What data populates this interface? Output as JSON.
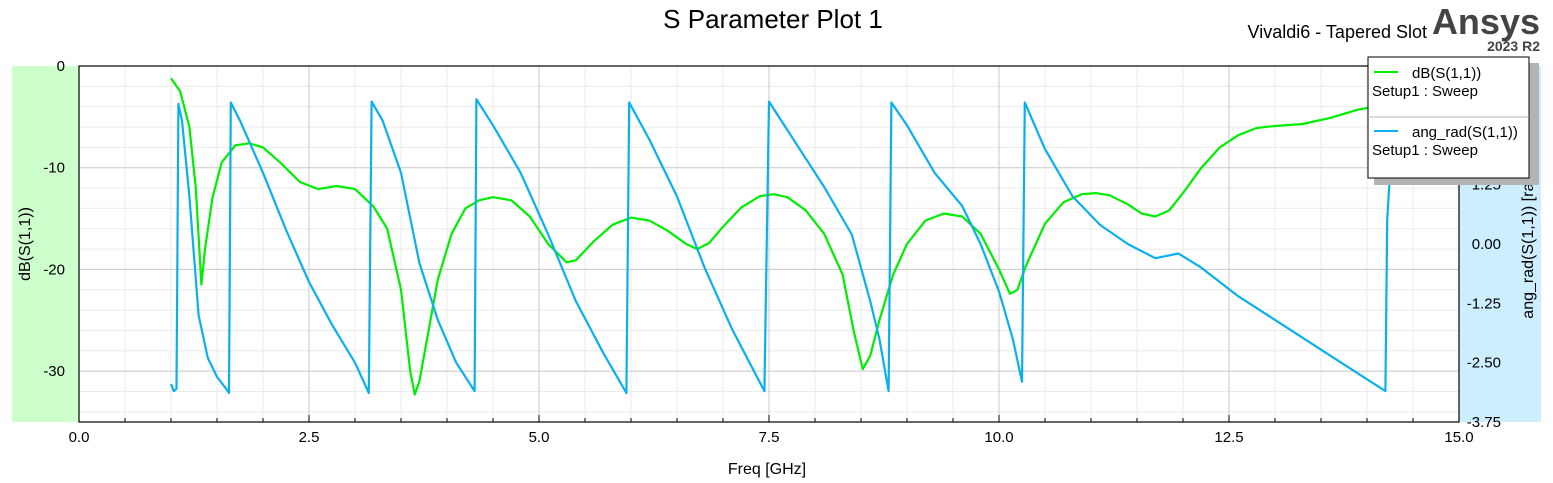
{
  "header": {
    "title": "S Parameter Plot 1",
    "design": "Vivaldi6 - Tapered Slot",
    "brand": "Ansys",
    "version": "2023 R2"
  },
  "colors": {
    "left_axis_band": "#ccffcc",
    "right_axis_band": "#cceeff",
    "series_db": "#00ee00",
    "series_ang": "#0ab0ee",
    "grid_major": "#c8c8c8",
    "grid_minor": "#ebebeb"
  },
  "chart_data": {
    "type": "line",
    "xlabel": "Freq [GHz]",
    "ylabel_left": "dB(S(1,1))",
    "ylabel_right": "ang_rad(S(1,1)) [rad]",
    "xlim": [
      0,
      15
    ],
    "ylim_left": [
      -35,
      0
    ],
    "ylim_right": [
      -3.75,
      3.75
    ],
    "x_ticks": [
      "0.0",
      "2.5",
      "5.0",
      "7.5",
      "10.0",
      "12.5",
      "15.0"
    ],
    "x_tick_values": [
      0,
      2.5,
      5,
      7.5,
      10,
      12.5,
      15
    ],
    "y_ticks_left": [
      "0",
      "-10",
      "-20",
      "-30"
    ],
    "y_tick_values_left": [
      0,
      -10,
      -20,
      -30
    ],
    "y_ticks_right": [
      "1.25",
      "0.00",
      "-1.25",
      "-2.50",
      "-3.75"
    ],
    "y_tick_values_right": [
      1.25,
      0,
      -1.25,
      -2.5,
      -3.75
    ],
    "grid": true,
    "legend_position": "top-right",
    "series": [
      {
        "name": "dB(S(1,1))",
        "setup": "Setup1 : Sweep",
        "axis": "left",
        "points": [
          [
            1.0,
            -1.2
          ],
          [
            1.1,
            -2.5
          ],
          [
            1.2,
            -6
          ],
          [
            1.27,
            -12
          ],
          [
            1.33,
            -21.5
          ],
          [
            1.37,
            -18
          ],
          [
            1.45,
            -13
          ],
          [
            1.55,
            -9.5
          ],
          [
            1.7,
            -7.8
          ],
          [
            1.85,
            -7.6
          ],
          [
            2.0,
            -8
          ],
          [
            2.2,
            -9.6
          ],
          [
            2.4,
            -11.4
          ],
          [
            2.6,
            -12.1
          ],
          [
            2.8,
            -11.8
          ],
          [
            3.0,
            -12.1
          ],
          [
            3.2,
            -13.8
          ],
          [
            3.35,
            -16
          ],
          [
            3.5,
            -22
          ],
          [
            3.6,
            -30
          ],
          [
            3.65,
            -32.3
          ],
          [
            3.7,
            -31
          ],
          [
            3.8,
            -26
          ],
          [
            3.9,
            -21
          ],
          [
            4.05,
            -16.5
          ],
          [
            4.2,
            -14
          ],
          [
            4.35,
            -13.2
          ],
          [
            4.5,
            -12.9
          ],
          [
            4.7,
            -13.2
          ],
          [
            4.9,
            -14.8
          ],
          [
            5.1,
            -17.5
          ],
          [
            5.3,
            -19.3
          ],
          [
            5.4,
            -19.1
          ],
          [
            5.6,
            -17.2
          ],
          [
            5.8,
            -15.6
          ],
          [
            6.0,
            -14.9
          ],
          [
            6.2,
            -15.2
          ],
          [
            6.4,
            -16.2
          ],
          [
            6.6,
            -17.5
          ],
          [
            6.72,
            -18
          ],
          [
            6.85,
            -17.4
          ],
          [
            7.0,
            -15.8
          ],
          [
            7.2,
            -13.9
          ],
          [
            7.4,
            -12.8
          ],
          [
            7.55,
            -12.6
          ],
          [
            7.7,
            -12.9
          ],
          [
            7.9,
            -14.2
          ],
          [
            8.1,
            -16.5
          ],
          [
            8.3,
            -20.5
          ],
          [
            8.42,
            -26
          ],
          [
            8.52,
            -29.8
          ],
          [
            8.6,
            -28.5
          ],
          [
            8.7,
            -25
          ],
          [
            8.85,
            -20.5
          ],
          [
            9.0,
            -17.5
          ],
          [
            9.2,
            -15.2
          ],
          [
            9.4,
            -14.5
          ],
          [
            9.6,
            -14.8
          ],
          [
            9.8,
            -16.5
          ],
          [
            10.0,
            -20
          ],
          [
            10.12,
            -22.4
          ],
          [
            10.2,
            -22
          ],
          [
            10.3,
            -19.5
          ],
          [
            10.5,
            -15.5
          ],
          [
            10.7,
            -13.4
          ],
          [
            10.9,
            -12.6
          ],
          [
            11.05,
            -12.5
          ],
          [
            11.2,
            -12.7
          ],
          [
            11.4,
            -13.6
          ],
          [
            11.55,
            -14.5
          ],
          [
            11.7,
            -14.8
          ],
          [
            11.85,
            -14.2
          ],
          [
            12.0,
            -12.5
          ],
          [
            12.2,
            -10
          ],
          [
            12.4,
            -8
          ],
          [
            12.6,
            -6.8
          ],
          [
            12.8,
            -6.1
          ],
          [
            13.0,
            -5.9
          ],
          [
            13.3,
            -5.7
          ],
          [
            13.6,
            -5.1
          ],
          [
            13.9,
            -4.3
          ],
          [
            14.2,
            -3.8
          ]
        ]
      },
      {
        "name": "ang_rad(S(1,1))",
        "setup": "Setup1 : Sweep",
        "axis": "right",
        "points": [
          [
            1.0,
            -2.95
          ],
          [
            1.03,
            -3.1
          ],
          [
            1.06,
            -3.05
          ],
          [
            1.08,
            2.95
          ],
          [
            1.12,
            2.6
          ],
          [
            1.2,
            1.0
          ],
          [
            1.3,
            -1.5
          ],
          [
            1.4,
            -2.4
          ],
          [
            1.5,
            -2.8
          ],
          [
            1.6,
            -3.05
          ],
          [
            1.63,
            -3.14
          ],
          [
            1.65,
            2.98
          ],
          [
            1.75,
            2.6
          ],
          [
            2.0,
            1.5
          ],
          [
            2.25,
            0.3
          ],
          [
            2.5,
            -0.8
          ],
          [
            2.75,
            -1.7
          ],
          [
            3.0,
            -2.5
          ],
          [
            3.15,
            -3.14
          ],
          [
            3.18,
            3.0
          ],
          [
            3.3,
            2.6
          ],
          [
            3.5,
            1.5
          ],
          [
            3.7,
            -0.4
          ],
          [
            3.9,
            -1.6
          ],
          [
            4.1,
            -2.5
          ],
          [
            4.3,
            -3.1
          ],
          [
            4.32,
            3.05
          ],
          [
            4.5,
            2.5
          ],
          [
            4.8,
            1.5
          ],
          [
            5.1,
            0.2
          ],
          [
            5.4,
            -1.2
          ],
          [
            5.7,
            -2.3
          ],
          [
            5.95,
            -3.14
          ],
          [
            5.98,
            2.98
          ],
          [
            6.2,
            2.2
          ],
          [
            6.5,
            1.0
          ],
          [
            6.8,
            -0.5
          ],
          [
            7.1,
            -1.8
          ],
          [
            7.45,
            -3.1
          ],
          [
            7.5,
            3.0
          ],
          [
            7.8,
            2.1
          ],
          [
            8.1,
            1.2
          ],
          [
            8.4,
            0.2
          ],
          [
            8.6,
            -1.2
          ],
          [
            8.7,
            -2.0
          ],
          [
            8.8,
            -3.1
          ],
          [
            8.83,
            2.98
          ],
          [
            9.0,
            2.5
          ],
          [
            9.3,
            1.5
          ],
          [
            9.6,
            0.8
          ],
          [
            9.8,
            0.0
          ],
          [
            10.0,
            -1.0
          ],
          [
            10.15,
            -2.0
          ],
          [
            10.25,
            -2.9
          ],
          [
            10.28,
            2.98
          ],
          [
            10.5,
            2.0
          ],
          [
            10.8,
            1.0
          ],
          [
            11.1,
            0.4
          ],
          [
            11.4,
            0.0
          ],
          [
            11.7,
            -0.3
          ],
          [
            11.95,
            -0.2
          ],
          [
            12.2,
            -0.5
          ],
          [
            12.6,
            -1.1
          ],
          [
            13.0,
            -1.6
          ],
          [
            13.4,
            -2.1
          ],
          [
            13.8,
            -2.6
          ],
          [
            14.2,
            -3.1
          ],
          [
            14.22,
            0.5
          ],
          [
            14.25,
            1.5
          ]
        ]
      }
    ]
  }
}
